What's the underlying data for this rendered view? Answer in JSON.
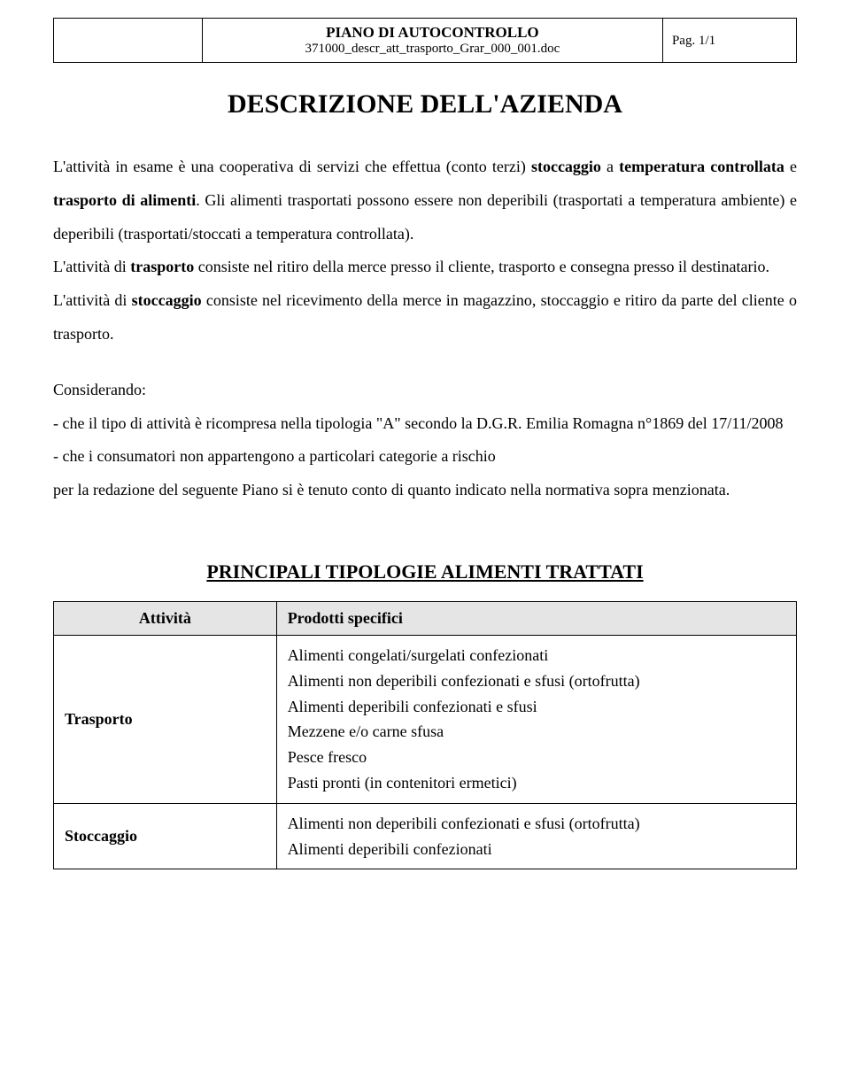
{
  "header": {
    "title": "PIANO DI AUTOCONTROLLO",
    "subtitle": "371000_descr_att_trasporto_Grar_000_001.doc",
    "page": "Pag. 1/1"
  },
  "main_title": "DESCRIZIONE DELL'AZIENDA",
  "paragraphs": {
    "p1_part1": "L'attività in esame è una cooperativa di servizi che effettua (conto terzi) ",
    "p1_bold1": "stoccaggio",
    "p1_part2": " a ",
    "p1_bold2": "temperatura controllata",
    "p1_part3": " e ",
    "p1_bold3": "trasporto di alimenti",
    "p1_part4": ". Gli alimenti trasportati possono essere non deperibili (trasportati a temperatura ambiente) e deperibili (trasportati/stoccati a temperatura controllata).",
    "p2_part1": "L'attività di ",
    "p2_bold1": "trasporto",
    "p2_part2": " consiste nel ritiro della merce presso il cliente, trasporto e consegna presso il destinatario.",
    "p3_part1": "L'attività di ",
    "p3_bold1": "stoccaggio",
    "p3_part2": " consiste nel ricevimento della merce in magazzino, stoccaggio e ritiro da parte del cliente o trasporto.",
    "p4": "Considerando:",
    "p5": "- che il tipo di attività è ricompresa nella tipologia \"A\" secondo la D.G.R. Emilia Romagna n°1869 del 17/11/2008",
    "p6": "- che i consumatori non appartengono a particolari categorie a rischio",
    "p7": "per la redazione del seguente Piano si è tenuto conto di quanto indicato nella normativa sopra menzionata."
  },
  "section_title": "PRINCIPALI TIPOLOGIE ALIMENTI TRATTATI",
  "table": {
    "col1_header": "Attività",
    "col2_header": "Prodotti specifici",
    "rows": [
      {
        "attivita": "Trasporto",
        "prodotti": [
          "Alimenti congelati/surgelati confezionati",
          "Alimenti non deperibili confezionati e sfusi (ortofrutta)",
          "Alimenti deperibili confezionati e sfusi",
          "Mezzene e/o carne sfusa",
          "Pesce fresco",
          "Pasti pronti (in contenitori ermetici)"
        ]
      },
      {
        "attivita": "Stoccaggio",
        "prodotti": [
          "Alimenti non deperibili confezionati e sfusi (ortofrutta)",
          "Alimenti deperibili confezionati"
        ]
      }
    ]
  }
}
